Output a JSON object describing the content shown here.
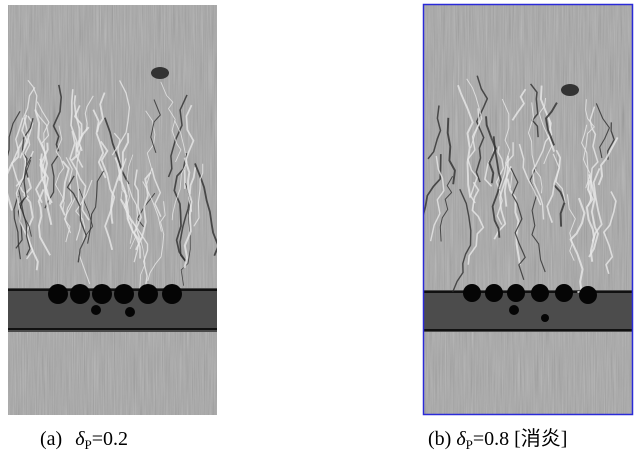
{
  "panels": [
    {
      "label": "(a)",
      "symbol": "δ",
      "subscript": "P",
      "value": "=0.2"
    },
    {
      "label": "(b)",
      "symbol": "δ",
      "subscript": "P",
      "value": "=0.8",
      "note": "[消炎]"
    }
  ]
}
